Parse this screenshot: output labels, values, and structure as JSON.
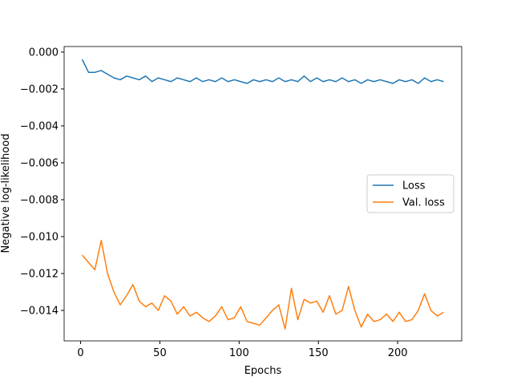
{
  "chart_data": {
    "type": "line",
    "x_label": "Epochs",
    "y_label": "Negative log-likelihood",
    "x": [
      1,
      5,
      9,
      13,
      17,
      21,
      25,
      29,
      33,
      37,
      41,
      45,
      49,
      53,
      57,
      61,
      65,
      69,
      73,
      77,
      81,
      85,
      89,
      93,
      97,
      101,
      105,
      109,
      113,
      117,
      121,
      125,
      129,
      133,
      137,
      141,
      145,
      149,
      153,
      157,
      161,
      165,
      169,
      173,
      177,
      181,
      185,
      189,
      193,
      197,
      201,
      205,
      209,
      213,
      217,
      221,
      225,
      229
    ],
    "series": [
      {
        "name": "Loss",
        "color": "#1f77b4",
        "values": [
          -0.0004,
          -0.0011,
          -0.0011,
          -0.001,
          -0.0012,
          -0.0014,
          -0.0015,
          -0.0013,
          -0.0014,
          -0.0015,
          -0.0013,
          -0.0016,
          -0.0014,
          -0.0015,
          -0.0016,
          -0.0014,
          -0.0015,
          -0.0016,
          -0.0014,
          -0.0016,
          -0.0015,
          -0.0016,
          -0.0014,
          -0.0016,
          -0.0015,
          -0.0016,
          -0.0017,
          -0.0015,
          -0.0016,
          -0.0015,
          -0.0016,
          -0.0014,
          -0.0016,
          -0.0015,
          -0.0016,
          -0.0013,
          -0.0016,
          -0.0014,
          -0.0016,
          -0.0015,
          -0.0016,
          -0.0014,
          -0.0016,
          -0.0015,
          -0.0017,
          -0.0015,
          -0.0016,
          -0.0015,
          -0.0016,
          -0.0017,
          -0.0015,
          -0.0016,
          -0.0015,
          -0.0017,
          -0.0014,
          -0.0016,
          -0.0015,
          -0.0016
        ]
      },
      {
        "name": "Val. loss",
        "color": "#ff7f0e",
        "values": [
          -0.011,
          -0.0114,
          -0.0118,
          -0.0102,
          -0.012,
          -0.013,
          -0.0137,
          -0.0132,
          -0.0126,
          -0.0135,
          -0.0138,
          -0.0136,
          -0.014,
          -0.0132,
          -0.0135,
          -0.0142,
          -0.0138,
          -0.0143,
          -0.0141,
          -0.0144,
          -0.0146,
          -0.0143,
          -0.0138,
          -0.0145,
          -0.0144,
          -0.0138,
          -0.0146,
          -0.0147,
          -0.0148,
          -0.0144,
          -0.014,
          -0.0137,
          -0.015,
          -0.0128,
          -0.0145,
          -0.0134,
          -0.0136,
          -0.0135,
          -0.0141,
          -0.0132,
          -0.0142,
          -0.014,
          -0.0127,
          -0.014,
          -0.0149,
          -0.0142,
          -0.0146,
          -0.0145,
          -0.0142,
          -0.0146,
          -0.0141,
          -0.0146,
          -0.0145,
          -0.014,
          -0.0131,
          -0.014,
          -0.0143,
          -0.0141
        ]
      }
    ],
    "xlim": [
      -10.4,
      240.4
    ],
    "ylim": [
      -0.01565,
      0.0003
    ],
    "xticks": [
      0,
      50,
      100,
      150,
      200
    ],
    "yticks": [
      {
        "value": 0,
        "label": "0.000"
      },
      {
        "value": -0.002,
        "label": "−0.002"
      },
      {
        "value": -0.004,
        "label": "−0.004"
      },
      {
        "value": -0.006,
        "label": "−0.006"
      },
      {
        "value": -0.008,
        "label": "−0.008"
      },
      {
        "value": -0.01,
        "label": "−0.010"
      },
      {
        "value": -0.012,
        "label": "−0.012"
      },
      {
        "value": -0.014,
        "label": "−0.014"
      }
    ],
    "grid": false,
    "legend": "right"
  }
}
